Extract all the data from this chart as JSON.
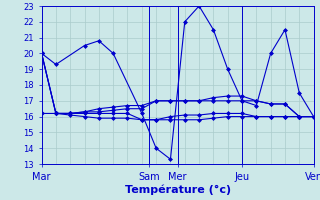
{
  "background_color": "#cce8e8",
  "grid_color": "#aacccc",
  "line_color": "#0000cc",
  "xlabel": "Température (°c)",
  "xlabel_fontsize": 8,
  "xlim": [
    0,
    19
  ],
  "ylim": [
    13,
    23
  ],
  "yticks": [
    13,
    14,
    15,
    16,
    17,
    18,
    19,
    20,
    21,
    22,
    23
  ],
  "ytick_fontsize": 6,
  "xtick_fontsize": 7,
  "x_day_positions": [
    0,
    7.5,
    9.5,
    14,
    19
  ],
  "x_day_labels": [
    "Mar",
    "Sam",
    "Mer",
    "Jeu",
    "Ven"
  ],
  "x_vlines": [
    7.5,
    9.5,
    14,
    19
  ],
  "series": [
    {
      "x": [
        0,
        1,
        3,
        4,
        5,
        7,
        8,
        9,
        10,
        11,
        12,
        13,
        14,
        15,
        16,
        17,
        18,
        19
      ],
      "y": [
        20.0,
        19.3,
        20.5,
        20.8,
        20.0,
        16.2,
        14.0,
        13.3,
        22.0,
        23.0,
        21.5,
        19.0,
        17.0,
        16.7,
        20.0,
        21.5,
        17.5,
        16.0
      ]
    },
    {
      "x": [
        0,
        1,
        2,
        3,
        4,
        5,
        6,
        7,
        8,
        9,
        10,
        11,
        12,
        13,
        14,
        15,
        16,
        17,
        18,
        19
      ],
      "y": [
        20.0,
        16.2,
        16.2,
        16.3,
        16.3,
        16.4,
        16.5,
        16.5,
        17.0,
        17.0,
        17.0,
        17.0,
        17.2,
        17.3,
        17.3,
        17.0,
        16.8,
        16.8,
        16.0,
        16.0
      ]
    },
    {
      "x": [
        0,
        1,
        2,
        3,
        4,
        5,
        6,
        7,
        8,
        9,
        10,
        11,
        12,
        13,
        14,
        15,
        16,
        17,
        18,
        19
      ],
      "y": [
        20.0,
        16.2,
        16.2,
        16.3,
        16.5,
        16.6,
        16.7,
        16.7,
        17.0,
        17.0,
        17.0,
        17.0,
        17.0,
        17.0,
        17.0,
        17.0,
        16.8,
        16.8,
        16.0,
        16.0
      ]
    },
    {
      "x": [
        0,
        1,
        2,
        3,
        4,
        5,
        6,
        7,
        8,
        9,
        10,
        11,
        12,
        13,
        14,
        15,
        16,
        17,
        18,
        19
      ],
      "y": [
        20.0,
        16.2,
        16.1,
        16.0,
        15.9,
        15.9,
        15.9,
        15.8,
        15.8,
        16.0,
        16.1,
        16.1,
        16.2,
        16.2,
        16.2,
        16.0,
        16.0,
        16.0,
        16.0,
        16.0
      ]
    },
    {
      "x": [
        0,
        1,
        2,
        3,
        4,
        5,
        6,
        7,
        8,
        9,
        10,
        11,
        12,
        13,
        14,
        15,
        16,
        17,
        18,
        19
      ],
      "y": [
        16.2,
        16.2,
        16.2,
        16.2,
        16.2,
        16.2,
        16.2,
        15.8,
        15.8,
        15.8,
        15.8,
        15.8,
        15.9,
        16.0,
        16.0,
        16.0,
        16.0,
        16.0,
        16.0,
        16.0
      ]
    }
  ]
}
